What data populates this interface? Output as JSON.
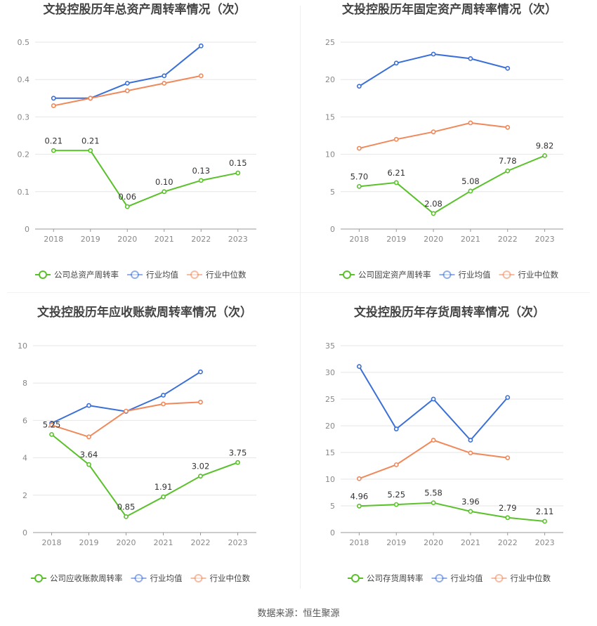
{
  "source_text": "数据来源：恒生聚源",
  "colors": {
    "company": "#5ac12b",
    "industry_avg": "#3a6fd8",
    "industry_median": "#f0885a",
    "grid": "#e6e6e6",
    "axis_text": "#888888",
    "title": "#444444",
    "label": "#333333"
  },
  "chart_data": [
    {
      "type": "line",
      "title": "文投控股历年总资产周转率情况（次）",
      "categories": [
        "2018",
        "2019",
        "2020",
        "2021",
        "2022",
        "2023"
      ],
      "ylim": [
        0,
        0.5
      ],
      "yticks": [
        "0",
        "0.1",
        "0.2",
        "0.3",
        "0.4",
        "0.5"
      ],
      "grid": true,
      "legend_position": "bottom",
      "series": [
        {
          "name": "公司总资产周转率",
          "values": [
            0.21,
            0.21,
            0.06,
            0.1,
            0.13,
            0.15
          ],
          "labels": [
            "0.21",
            "0.21",
            "0.06",
            "0.10",
            "0.13",
            "0.15"
          ]
        },
        {
          "name": "行业均值",
          "values": [
            0.35,
            0.35,
            0.39,
            0.41,
            0.49,
            null
          ]
        },
        {
          "name": "行业中位数",
          "values": [
            0.33,
            0.35,
            0.37,
            0.39,
            0.41,
            null
          ]
        }
      ]
    },
    {
      "type": "line",
      "title": "文投控股历年固定资产周转率情况（次）",
      "categories": [
        "2018",
        "2019",
        "2020",
        "2021",
        "2022",
        "2023"
      ],
      "ylim": [
        0,
        25
      ],
      "yticks": [
        "0",
        "5",
        "10",
        "15",
        "20",
        "25"
      ],
      "grid": true,
      "legend_position": "bottom",
      "series": [
        {
          "name": "公司固定资产周转率",
          "values": [
            5.7,
            6.21,
            2.08,
            5.08,
            7.78,
            9.82
          ],
          "labels": [
            "5.70",
            "6.21",
            "2.08",
            "5.08",
            "7.78",
            "9.82"
          ]
        },
        {
          "name": "行业均值",
          "values": [
            19.1,
            22.2,
            23.4,
            22.8,
            21.5,
            null
          ]
        },
        {
          "name": "行业中位数",
          "values": [
            10.8,
            12.0,
            13.0,
            14.2,
            13.6,
            null
          ]
        }
      ]
    },
    {
      "type": "line",
      "title": "文投控股历年应收账款周转率情况（次）",
      "categories": [
        "2018",
        "2019",
        "2020",
        "2021",
        "2022",
        "2023"
      ],
      "ylim": [
        0,
        10
      ],
      "yticks": [
        "0",
        "2",
        "4",
        "6",
        "8",
        "10"
      ],
      "grid": true,
      "legend_position": "bottom",
      "series": [
        {
          "name": "公司应收账款周转率",
          "values": [
            5.25,
            3.64,
            0.85,
            1.91,
            3.02,
            3.75
          ],
          "labels": [
            "5.25",
            "3.64",
            "0.85",
            "1.91",
            "3.02",
            "3.75"
          ]
        },
        {
          "name": "行业均值",
          "values": [
            5.85,
            6.8,
            6.48,
            7.35,
            8.6,
            null
          ]
        },
        {
          "name": "行业中位数",
          "values": [
            5.75,
            5.12,
            6.5,
            6.88,
            6.98,
            null
          ]
        }
      ]
    },
    {
      "type": "line",
      "title": "文投控股历年存货周转率情况（次）",
      "categories": [
        "2018",
        "2019",
        "2020",
        "2021",
        "2022",
        "2023"
      ],
      "ylim": [
        0,
        35
      ],
      "yticks": [
        "0",
        "5",
        "10",
        "15",
        "20",
        "25",
        "30",
        "35"
      ],
      "grid": true,
      "legend_position": "bottom",
      "series": [
        {
          "name": "公司存货周转率",
          "values": [
            4.96,
            5.25,
            5.58,
            3.96,
            2.79,
            2.11
          ],
          "labels": [
            "4.96",
            "5.25",
            "5.58",
            "3.96",
            "2.79",
            "2.11"
          ]
        },
        {
          "name": "行业均值",
          "values": [
            31.1,
            19.4,
            25.0,
            17.3,
            25.3,
            null
          ]
        },
        {
          "name": "行业中位数",
          "values": [
            10.1,
            12.7,
            17.3,
            14.9,
            14.0,
            null
          ]
        }
      ]
    }
  ]
}
